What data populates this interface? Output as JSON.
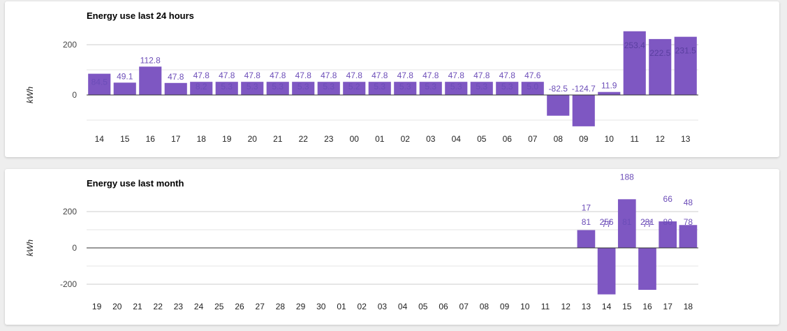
{
  "colors": {
    "bar": "#7e57c2",
    "label": "#6c4db8",
    "grid": "#cccccc",
    "zero": "#333333",
    "text": "#444444"
  },
  "chart_data": [
    {
      "type": "bar",
      "title": "Energy use last 24 hours",
      "ylabel": "kWh",
      "ylim": [
        -125,
        250
      ],
      "yticks": [
        0,
        200
      ],
      "grid": true,
      "categories": [
        "14",
        "15",
        "16",
        "17",
        "18",
        "19",
        "20",
        "21",
        "22",
        "23",
        "00",
        "01",
        "02",
        "03",
        "04",
        "05",
        "06",
        "07",
        "08",
        "09",
        "10",
        "11",
        "12",
        "13"
      ],
      "values": [
        84.5,
        49.1,
        112.8,
        47.8,
        52.3,
        52.3,
        52.3,
        52.3,
        52.3,
        52.3,
        52.2,
        52.3,
        52.3,
        52.3,
        52.3,
        52.3,
        52.3,
        52.3,
        -82.5,
        -124.7,
        11.9,
        253.4,
        222.5,
        231.5
      ],
      "labels": [
        [
          "84.5"
        ],
        [
          "49.1"
        ],
        [
          "112.8"
        ],
        [
          "47.8"
        ],
        [
          "47.8",
          "8.2"
        ],
        [
          "47.8",
          "5.3"
        ],
        [
          "47.8",
          "5.3"
        ],
        [
          "47.8",
          "5.3"
        ],
        [
          "47.8",
          "5.3"
        ],
        [
          "47.8",
          "5.3"
        ],
        [
          "47.8",
          "5.2"
        ],
        [
          "47.8",
          "5.3"
        ],
        [
          "47.8",
          "5.3"
        ],
        [
          "47.8",
          "5.3"
        ],
        [
          "47.8",
          "5.3"
        ],
        [
          "47.8",
          "5.3"
        ],
        [
          "47.8",
          "5.3"
        ],
        [
          "47.6",
          "5.0"
        ],
        [
          "-82.5"
        ],
        [
          "-124.7"
        ],
        [
          "11.9"
        ],
        [
          "253.4"
        ],
        [
          "222.5"
        ],
        [
          "231.5"
        ]
      ]
    },
    {
      "type": "bar",
      "title": "Energy use last month",
      "ylabel": "kWh",
      "ylim": [
        -250,
        270
      ],
      "yticks": [
        -200,
        0,
        200
      ],
      "grid": true,
      "categories": [
        "19",
        "20",
        "21",
        "22",
        "23",
        "24",
        "25",
        "26",
        "27",
        "28",
        "29",
        "30",
        "01",
        "02",
        "03",
        "04",
        "05",
        "06",
        "07",
        "08",
        "09",
        "10",
        "11",
        "12",
        "13",
        "14",
        "15",
        "16",
        "17",
        "18"
      ],
      "values": [
        0,
        0,
        0,
        0,
        0,
        0,
        0,
        0,
        0,
        0,
        0,
        0,
        0,
        0,
        0,
        0,
        0,
        0,
        0,
        0,
        0,
        0,
        0,
        0,
        98,
        -256,
        268,
        -231,
        146,
        126
      ],
      "labels": [
        [],
        [],
        [],
        [],
        [],
        [],
        [],
        [],
        [],
        [],
        [],
        [],
        [],
        [],
        [],
        [],
        [],
        [],
        [],
        [],
        [],
        [],
        [],
        [],
        [
          "17",
          "81"
        ],
        [
          "77",
          "256"
        ],
        [
          "188",
          "81"
        ],
        [
          "77",
          "231"
        ],
        [
          "66",
          "80"
        ],
        [
          "48",
          "78"
        ]
      ]
    }
  ]
}
